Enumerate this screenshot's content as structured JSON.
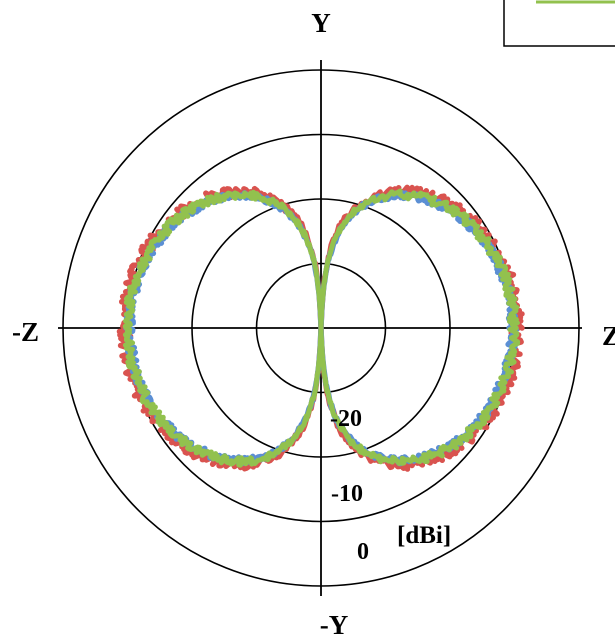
{
  "chart_data": {
    "type": "polar",
    "axis_labels": {
      "top": "Y",
      "bottom": "-Y",
      "left": "-Z",
      "right": "Z"
    },
    "radial_axis": {
      "unit": "[dBi]",
      "range": [
        -30,
        10
      ],
      "rings": [
        -20,
        -10,
        0,
        10
      ],
      "tick_labels": [
        {
          "value": -20,
          "text": "-20"
        },
        {
          "value": -10,
          "text": "-10"
        },
        {
          "value": 0,
          "text": "0"
        }
      ]
    },
    "pattern": {
      "shape": "figure-eight",
      "peak_dbi": 0,
      "null_directions_deg": [
        90,
        270
      ],
      "peak_directions_deg": [
        0,
        180
      ]
    },
    "series": [
      {
        "color": "#d9534f",
        "peak_dbi": 0.4,
        "noise_db": 0.9
      },
      {
        "color": "#5b8fd4",
        "peak_dbi": -0.3,
        "noise_db": 0.6
      },
      {
        "color": "#92c14e",
        "peak_dbi": -0.1,
        "noise_db": 0.7
      }
    ],
    "legend": {
      "placement": "top-right"
    }
  }
}
